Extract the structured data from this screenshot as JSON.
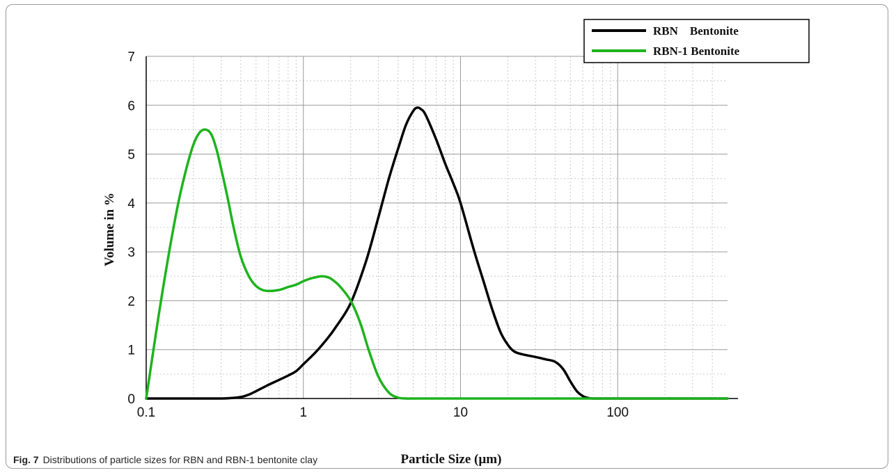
{
  "caption": {
    "label": "Fig. 7",
    "text": "Distributions of particle sizes for RBN and RBN-1 bentonite clay"
  },
  "chart_data": {
    "type": "line",
    "xlabel": "Particle Size (µm)",
    "ylabel": "Volume in %",
    "xscale": "log",
    "xlim": [
      0.1,
      500
    ],
    "ylim": [
      0,
      7
    ],
    "x_ticks": [
      {
        "value": 0.1,
        "label": "0.1"
      },
      {
        "value": 1,
        "label": "1"
      },
      {
        "value": 10,
        "label": "10"
      },
      {
        "value": 100,
        "label": "100"
      }
    ],
    "y_ticks": [
      0,
      1,
      2,
      3,
      4,
      5,
      6,
      7
    ],
    "grid": true,
    "legend_position": "top-right",
    "series": [
      {
        "name": "RBN    Bentonite",
        "color": "#000000",
        "x": [
          0.1,
          0.2,
          0.3,
          0.35,
          0.4,
          0.45,
          0.5,
          0.6,
          0.7,
          0.8,
          0.9,
          1.0,
          1.2,
          1.4,
          1.6,
          2.0,
          2.5,
          3.0,
          3.5,
          4.0,
          4.5,
          5.0,
          5.3,
          5.6,
          6.0,
          7.0,
          8.0,
          9.0,
          10,
          12,
          14,
          16,
          18,
          20,
          22,
          25,
          30,
          35,
          40,
          45,
          50,
          55,
          60,
          65,
          70,
          80,
          100,
          200,
          500
        ],
        "values": [
          0,
          0,
          0,
          0.01,
          0.03,
          0.08,
          0.15,
          0.28,
          0.38,
          0.47,
          0.56,
          0.7,
          0.95,
          1.2,
          1.45,
          1.95,
          2.8,
          3.7,
          4.5,
          5.1,
          5.6,
          5.88,
          5.95,
          5.92,
          5.8,
          5.3,
          4.8,
          4.4,
          4.0,
          3.1,
          2.4,
          1.8,
          1.35,
          1.1,
          0.96,
          0.9,
          0.85,
          0.8,
          0.75,
          0.6,
          0.35,
          0.15,
          0.05,
          0.01,
          0,
          0,
          0,
          0,
          0
        ]
      },
      {
        "name": "RBN-1 Bentonite",
        "color": "#1db31d",
        "x": [
          0.1,
          0.12,
          0.14,
          0.16,
          0.18,
          0.2,
          0.22,
          0.24,
          0.26,
          0.28,
          0.3,
          0.33,
          0.36,
          0.4,
          0.45,
          0.5,
          0.55,
          0.6,
          0.7,
          0.8,
          0.9,
          1.0,
          1.1,
          1.2,
          1.3,
          1.4,
          1.5,
          1.7,
          2.0,
          2.3,
          2.6,
          3.0,
          3.5,
          4.0,
          4.5,
          5.0,
          6.0,
          10,
          100,
          500
        ],
        "values": [
          0,
          1.7,
          3.0,
          4.0,
          4.7,
          5.2,
          5.45,
          5.5,
          5.4,
          5.1,
          4.7,
          4.1,
          3.5,
          2.9,
          2.5,
          2.3,
          2.22,
          2.2,
          2.22,
          2.28,
          2.33,
          2.4,
          2.45,
          2.48,
          2.5,
          2.49,
          2.45,
          2.3,
          2.0,
          1.55,
          1.0,
          0.45,
          0.12,
          0.02,
          0,
          0,
          0,
          0,
          0,
          0
        ]
      }
    ]
  }
}
